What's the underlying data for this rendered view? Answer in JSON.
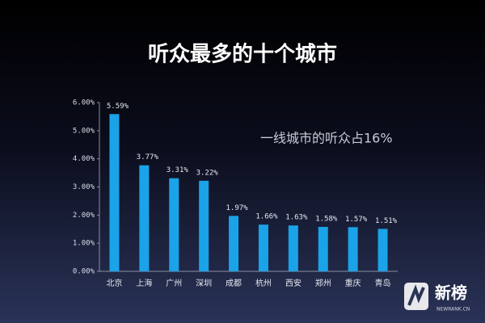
{
  "chart_data": {
    "type": "bar",
    "title": "听众最多的十个城市",
    "annotation": "一线城市的听众占16%",
    "categories": [
      "北京",
      "上海",
      "广州",
      "深圳",
      "成都",
      "杭州",
      "西安",
      "郑州",
      "重庆",
      "青岛"
    ],
    "values": [
      5.59,
      3.77,
      3.31,
      3.22,
      1.97,
      1.66,
      1.63,
      1.58,
      1.57,
      1.51
    ],
    "value_labels": [
      "5.59%",
      "3.77%",
      "3.31%",
      "3.22%",
      "1.97%",
      "1.66%",
      "1.63%",
      "1.58%",
      "1.57%",
      "1.51%"
    ],
    "color": "#1aa3e8",
    "ylim": [
      0,
      6
    ],
    "yticks": [
      {
        "value": 0,
        "label": "0.00%"
      },
      {
        "value": 1,
        "label": "1.00%"
      },
      {
        "value": 2,
        "label": "2.00%"
      },
      {
        "value": 3,
        "label": "3.00%"
      },
      {
        "value": 4,
        "label": "4.00%"
      },
      {
        "value": 5,
        "label": "5.00%"
      },
      {
        "value": 6,
        "label": "6.00%"
      }
    ],
    "grid": false,
    "watermark": {
      "name": "新榜",
      "site": "NEWRANK.CN"
    }
  }
}
